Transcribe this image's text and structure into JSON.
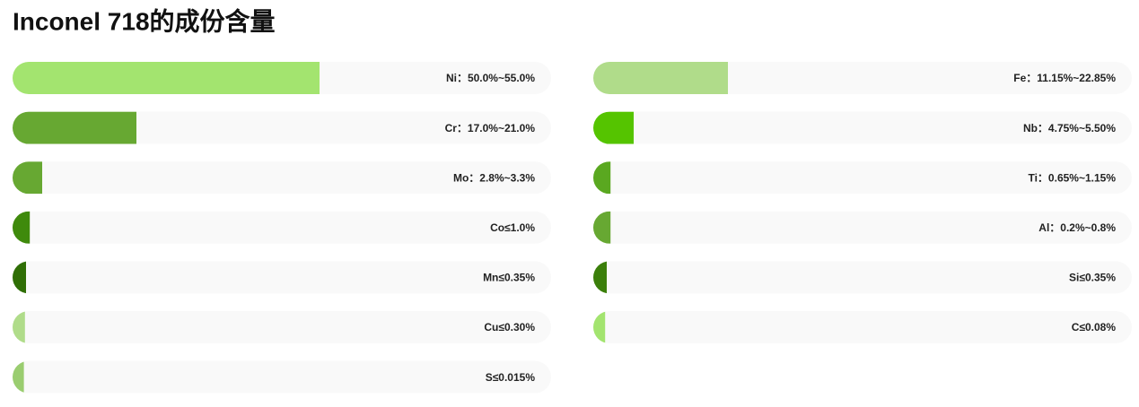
{
  "chart_data": {
    "type": "progress",
    "title": "Inconel 718的成份含量",
    "xlim": [
      0,
      100
    ],
    "track_color": "#f9f9f9",
    "columns": [
      {
        "categories": [
          "Ni：50.0%~55.0%",
          "Cr：17.0%~21.0%",
          "Mo：2.8%~3.3%",
          "Co≤1.0%",
          "Mn≤0.35%",
          "Cu≤0.30%",
          "S≤0.015%"
        ],
        "values": [
          57,
          23,
          5.5,
          3.2,
          2.5,
          2.3,
          2.1
        ],
        "colors": [
          "#a3e46f",
          "#67a832",
          "#67a832",
          "#3f8a0c",
          "#2f6e05",
          "#b0dc8a",
          "#9acd70"
        ]
      },
      {
        "categories": [
          "Fe：11.15%~22.85%",
          "Nb：4.75%~5.50%",
          "Ti：0.65%~1.15%",
          "Al：0.2%~0.8%",
          "Si≤0.35%",
          "C≤0.08%"
        ],
        "values": [
          25,
          7.5,
          3.2,
          3.2,
          2.5,
          2.2
        ],
        "colors": [
          "#b0dc8a",
          "#55c400",
          "#5aa820",
          "#67a832",
          "#3b7f0a",
          "#a3e46f"
        ]
      }
    ]
  }
}
